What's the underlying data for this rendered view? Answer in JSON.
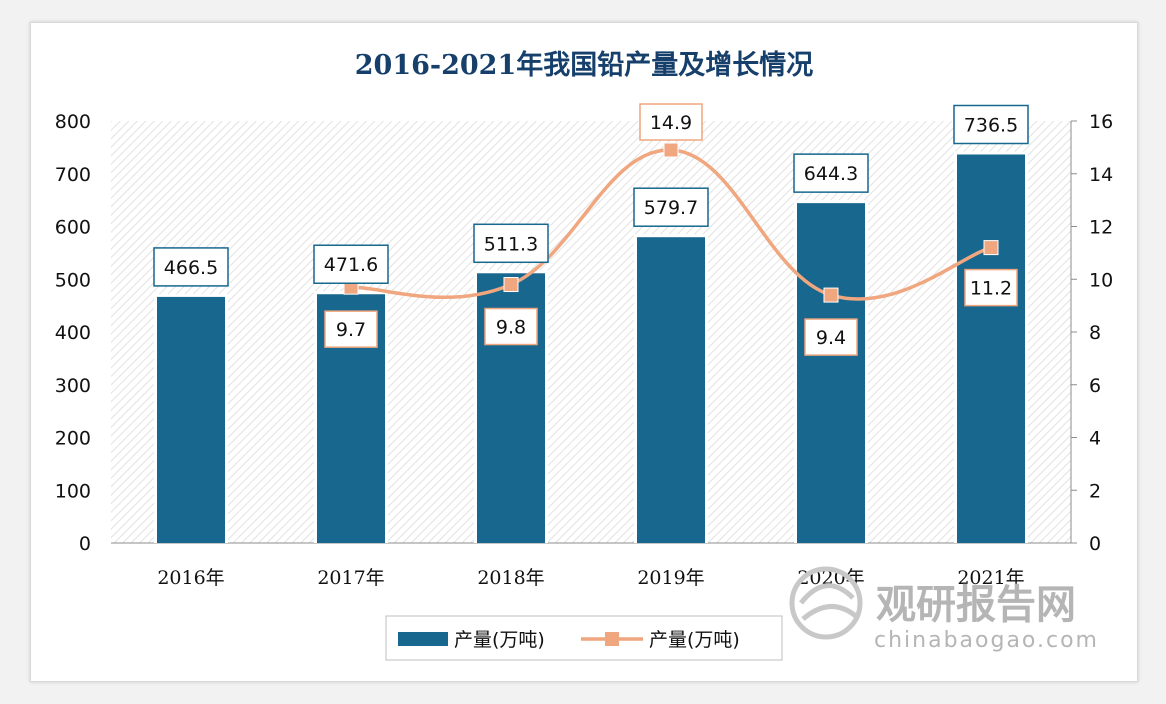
{
  "chart_data": {
    "type": "bar",
    "title": "2016-2021年我国铅产量及增长情况",
    "categories": [
      "2016年",
      "2017年",
      "2018年",
      "2019年",
      "2020年",
      "2021年"
    ],
    "series": [
      {
        "name": "产量(万吨)",
        "type": "bar",
        "axis": "left",
        "values": [
          466.5,
          471.6,
          511.3,
          579.7,
          644.3,
          736.5
        ],
        "labels": [
          "466.5",
          "471.6",
          "511.3",
          "579.7",
          "644.3",
          "736.5"
        ]
      },
      {
        "name": "产量(万吨)",
        "type": "line",
        "axis": "right",
        "x": [
          "2017年",
          "2018年",
          "2019年",
          "2020年",
          "2021年"
        ],
        "values": [
          9.7,
          9.8,
          14.9,
          9.4,
          11.2
        ],
        "labels": [
          "9.7",
          "9.8",
          "14.9",
          "9.4",
          "11.2"
        ]
      }
    ],
    "y_left": {
      "ylim": [
        0,
        800
      ],
      "ticks": [
        "0",
        "100",
        "200",
        "300",
        "400",
        "500",
        "600",
        "700",
        "800"
      ]
    },
    "y_right": {
      "ylim": [
        0,
        16
      ],
      "ticks": [
        "0",
        "2",
        "4",
        "6",
        "8",
        "10",
        "12",
        "14",
        "16"
      ]
    },
    "legend_position": "bottom",
    "colors": {
      "bar": "#17678e",
      "line": "#f0a67e",
      "title": "#16406b"
    }
  },
  "watermark": {
    "text": "观研报告网",
    "url": "chinabaogao.com"
  }
}
